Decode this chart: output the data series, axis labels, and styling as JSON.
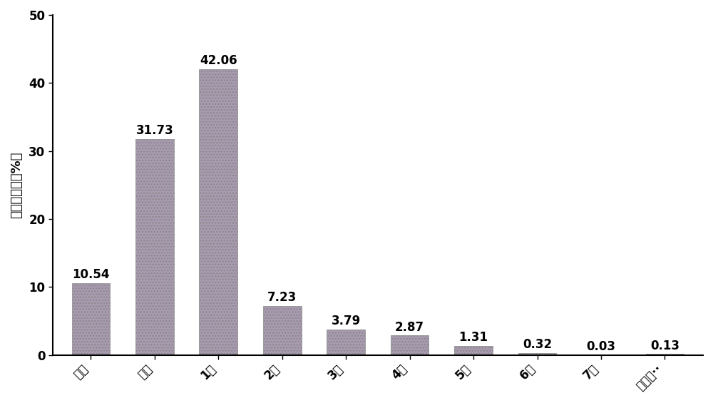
{
  "categories": [
    "装置",
    "喉部",
    "1级",
    "2级",
    "3级",
    "4级",
    "5级",
    "6级",
    "7级",
    "微孔收··"
  ],
  "values": [
    10.54,
    31.73,
    42.06,
    7.23,
    3.79,
    2.87,
    1.31,
    0.32,
    0.03,
    0.13
  ],
  "bar_facecolor": "#a89ab0",
  "bar_hatch": "....",
  "bar_edgecolor": "#888888",
  "ylabel": "各级沉积率（%）",
  "ylim": [
    0,
    50
  ],
  "yticks": [
    0,
    10,
    20,
    30,
    40,
    50
  ],
  "background_color": "#ffffff",
  "tick_fontsize": 12,
  "ylabel_fontsize": 13,
  "value_label_fontsize": 12,
  "bar_width": 0.6
}
